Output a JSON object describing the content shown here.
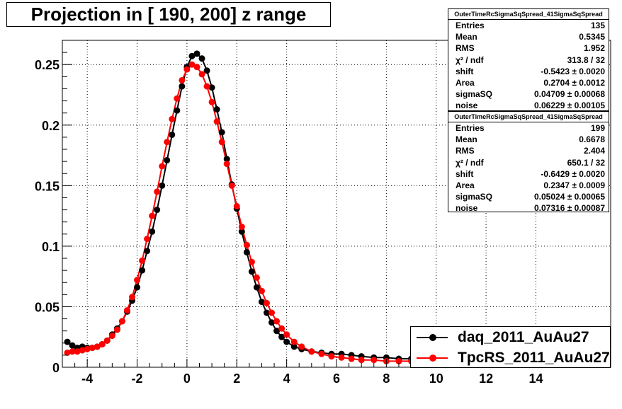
{
  "title": "Projection in [ 190, 200] z range",
  "stats": [
    {
      "header": "OuterTimeRcSigmaSqSpread_41SigmaSqSpread",
      "rows": [
        {
          "label": "Entries",
          "value": "135"
        },
        {
          "label": "Mean",
          "value": "0.5345"
        },
        {
          "label": "RMS",
          "value": "1.952"
        },
        {
          "label": "χ² / ndf",
          "value": "313.8 / 32"
        },
        {
          "label": "shift",
          "value": "-0.5423 ± 0.0020"
        },
        {
          "label": "Area",
          "value": "0.2704 ± 0.0012"
        },
        {
          "label": "sigmaSQ",
          "value": "0.04709 ± 0.00068"
        },
        {
          "label": "noise",
          "value": "0.06229 ± 0.00105"
        }
      ]
    },
    {
      "header": "OuterTimeRcSigmaSqSpread_41SigmaSqSpread",
      "rows": [
        {
          "label": "Entries",
          "value": "199"
        },
        {
          "label": "Mean",
          "value": "0.6678"
        },
        {
          "label": "RMS",
          "value": "2.404"
        },
        {
          "label": "χ² / ndf",
          "value": "650.1 / 32"
        },
        {
          "label": "shift",
          "value": "-0.6429 ± 0.0020"
        },
        {
          "label": "Area",
          "value": "0.2347 ± 0.0009"
        },
        {
          "label": "sigmaSQ",
          "value": "0.05024 ± 0.00065"
        },
        {
          "label": "noise",
          "value": "0.07316 ± 0.00087"
        }
      ]
    }
  ],
  "legend": [
    {
      "label": "daq_2011_AuAu27",
      "color": "#000000"
    },
    {
      "label": "TpcRS_2011_AuAu27",
      "color": "#ff0000"
    }
  ],
  "chart_data": {
    "type": "scatter",
    "xlim": [
      -5,
      17
    ],
    "ylim": [
      0,
      0.27
    ],
    "grid": true,
    "x_ticks": [
      -4,
      -2,
      0,
      2,
      4,
      6,
      8,
      10,
      12,
      14
    ],
    "y_ticks": [
      0,
      0.05,
      0.1,
      0.15,
      0.2,
      0.25
    ],
    "x_tick_labels": [
      "-4",
      "-2",
      "0",
      "2",
      "4",
      "6",
      "8",
      "10",
      "12",
      "14"
    ],
    "y_tick_labels": [
      "0",
      "0.05",
      "0.1",
      "0.15",
      "0.2",
      "0.25"
    ],
    "series": [
      {
        "color": "#000000",
        "x": [
          -4.8,
          -4.6,
          -4.4,
          -4.2,
          -4.0,
          -3.8,
          -3.6,
          -3.4,
          -3.2,
          -3.0,
          -2.8,
          -2.6,
          -2.4,
          -2.2,
          -2.0,
          -1.8,
          -1.6,
          -1.4,
          -1.2,
          -1.0,
          -0.8,
          -0.6,
          -0.4,
          -0.2,
          0.0,
          0.2,
          0.4,
          0.6,
          0.8,
          1.0,
          1.2,
          1.4,
          1.6,
          1.8,
          2.0,
          2.2,
          2.4,
          2.6,
          2.8,
          3.0,
          3.2,
          3.4,
          3.6,
          3.8,
          4.0,
          4.3,
          4.6,
          5.0,
          5.4,
          5.8,
          6.2,
          6.6,
          7.0,
          7.5,
          8.0,
          8.5,
          9.0
        ],
        "y": [
          0.021,
          0.018,
          0.016,
          0.017,
          0.016,
          0.016,
          0.017,
          0.019,
          0.022,
          0.027,
          0.032,
          0.038,
          0.046,
          0.055,
          0.066,
          0.08,
          0.096,
          0.112,
          0.13,
          0.15,
          0.171,
          0.192,
          0.212,
          0.232,
          0.248,
          0.257,
          0.259,
          0.255,
          0.245,
          0.231,
          0.213,
          0.194,
          0.172,
          0.151,
          0.131,
          0.112,
          0.095,
          0.079,
          0.066,
          0.054,
          0.045,
          0.037,
          0.03,
          0.025,
          0.021,
          0.017,
          0.015,
          0.013,
          0.012,
          0.011,
          0.011,
          0.01,
          0.009,
          0.008,
          0.008,
          0.007,
          0.007
        ]
      },
      {
        "color": "#ff0000",
        "x": [
          -4.8,
          -4.6,
          -4.4,
          -4.2,
          -4.0,
          -3.8,
          -3.6,
          -3.4,
          -3.2,
          -3.0,
          -2.8,
          -2.6,
          -2.4,
          -2.2,
          -2.0,
          -1.8,
          -1.6,
          -1.4,
          -1.2,
          -1.0,
          -0.8,
          -0.6,
          -0.4,
          -0.2,
          0.0,
          0.2,
          0.4,
          0.6,
          0.8,
          1.0,
          1.2,
          1.4,
          1.6,
          1.8,
          2.0,
          2.2,
          2.4,
          2.6,
          2.8,
          3.0,
          3.2,
          3.4,
          3.6,
          3.8,
          4.0,
          4.3,
          4.6,
          5.0,
          5.4,
          5.8,
          6.2,
          6.6,
          7.0,
          7.5,
          8.0,
          8.5,
          9.0
        ],
        "y": [
          0.012,
          0.013,
          0.013,
          0.014,
          0.015,
          0.016,
          0.017,
          0.019,
          0.022,
          0.026,
          0.031,
          0.038,
          0.047,
          0.058,
          0.072,
          0.088,
          0.106,
          0.125,
          0.145,
          0.166,
          0.186,
          0.205,
          0.222,
          0.237,
          0.246,
          0.25,
          0.248,
          0.242,
          0.232,
          0.219,
          0.203,
          0.186,
          0.168,
          0.15,
          0.133,
          0.116,
          0.101,
          0.087,
          0.074,
          0.063,
          0.053,
          0.045,
          0.038,
          0.032,
          0.027,
          0.021,
          0.017,
          0.013,
          0.011,
          0.009,
          0.008,
          0.007,
          0.006,
          0.006,
          0.005,
          0.005,
          0.005
        ]
      }
    ]
  }
}
